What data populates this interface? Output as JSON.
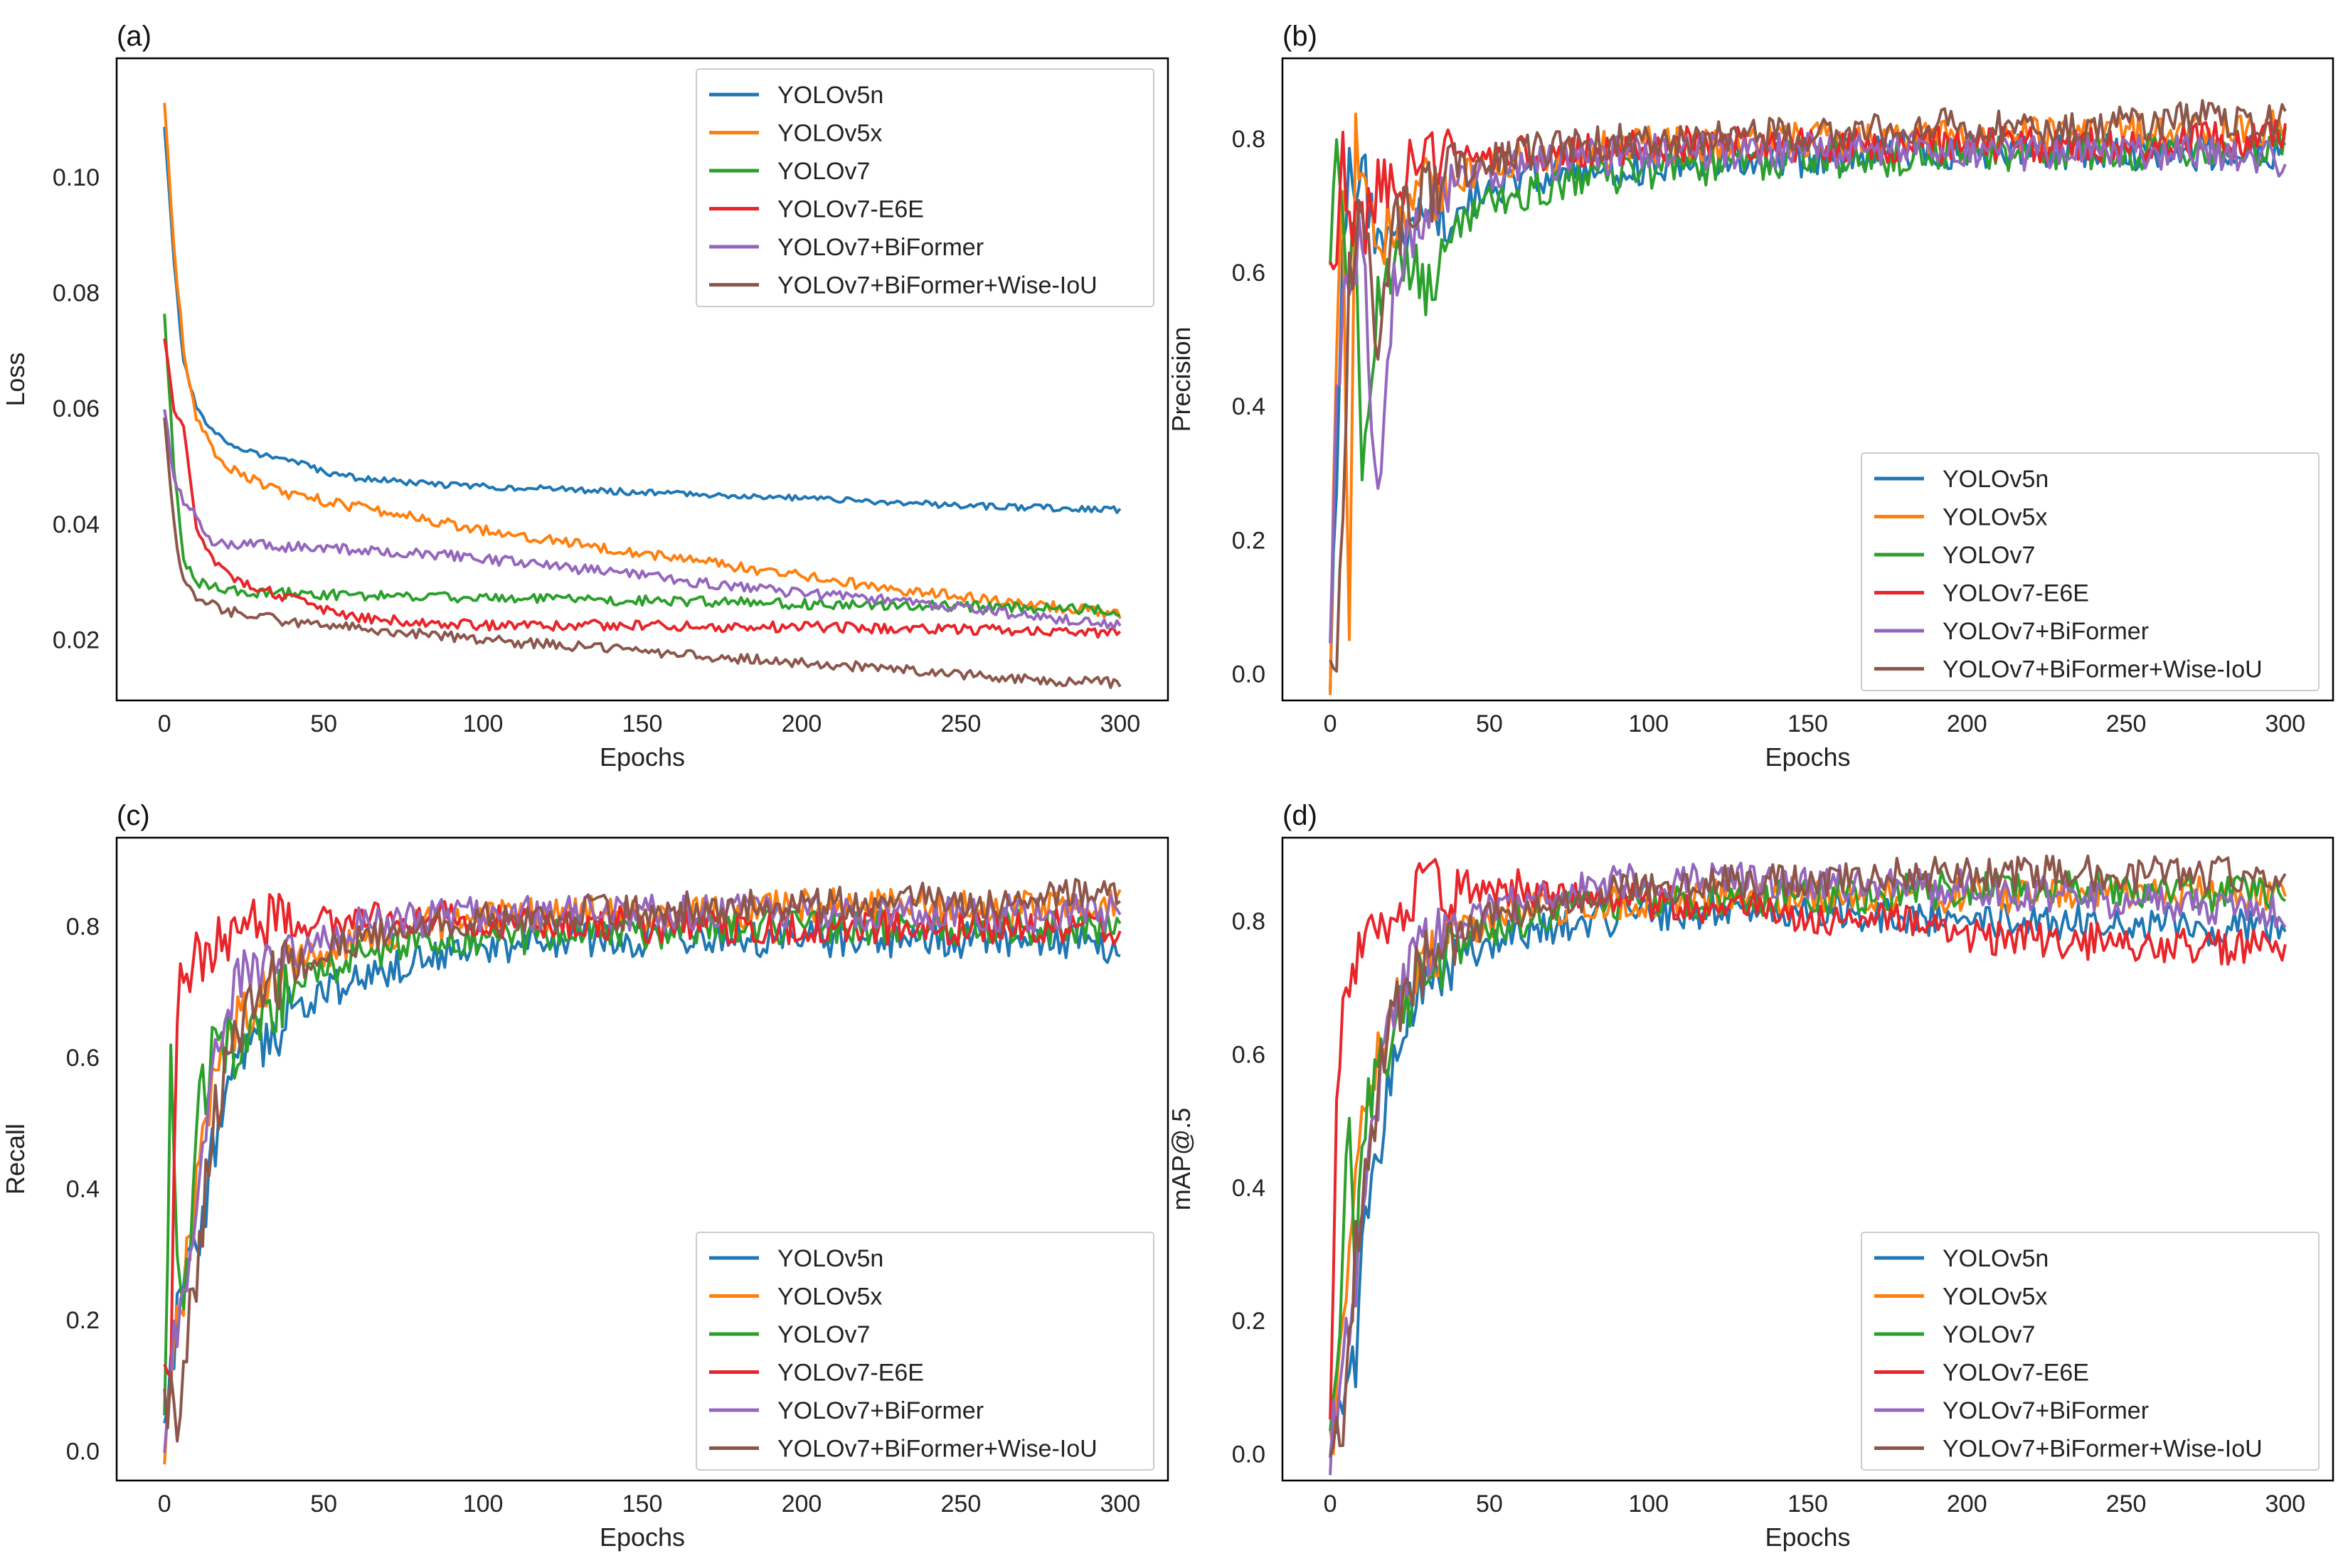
{
  "colors": {
    "YOLOv5n": "#1f77b4",
    "YOLOv5x": "#ff7f0e",
    "YOLOv7": "#2ca02c",
    "YOLOv7-E6E": "#e8252a",
    "YOLOv7+BiFormer": "#9467bd",
    "YOLOv7+BiFormer+Wise-IoU": "#8c564b"
  },
  "chart_data": [
    {
      "panel": "(a)",
      "type": "line",
      "xlabel": "Epochs",
      "ylabel": "Loss",
      "xlim": [
        -15,
        315
      ],
      "ylim": [
        0.0095,
        0.1205
      ],
      "xticks": [
        "0",
        "50",
        "100",
        "150",
        "200",
        "250",
        "300"
      ],
      "yticks": [
        "0.02",
        "0.04",
        "0.06",
        "0.08",
        "0.10"
      ],
      "legend_position": "top-right",
      "grid": false,
      "x": [
        0,
        3,
        6,
        10,
        15,
        20,
        30,
        40,
        50,
        60,
        80,
        100,
        125,
        150,
        175,
        200,
        225,
        250,
        275,
        300
      ],
      "series": [
        {
          "name": "YOLOv5n",
          "values": [
            0.109,
            0.085,
            0.068,
            0.06,
            0.056,
            0.054,
            0.052,
            0.051,
            0.049,
            0.048,
            0.047,
            0.0465,
            0.046,
            0.0455,
            0.045,
            0.0445,
            0.0438,
            0.0432,
            0.0428,
            0.0425
          ]
        },
        {
          "name": "YOLOv5x",
          "values": [
            0.113,
            0.088,
            0.07,
            0.058,
            0.053,
            0.05,
            0.047,
            0.045,
            0.044,
            0.043,
            0.041,
            0.039,
            0.037,
            0.035,
            0.033,
            0.031,
            0.029,
            0.0275,
            0.026,
            0.0245
          ]
        },
        {
          "name": "YOLOv7",
          "values": [
            0.076,
            0.05,
            0.034,
            0.03,
            0.029,
            0.0285,
            0.028,
            0.028,
            0.0278,
            0.0276,
            0.0275,
            0.0272,
            0.027,
            0.0268,
            0.0265,
            0.0262,
            0.026,
            0.0258,
            0.0255,
            0.025
          ]
        },
        {
          "name": "YOLOv7-E6E",
          "values": [
            0.072,
            0.06,
            0.056,
            0.04,
            0.034,
            0.031,
            0.029,
            0.027,
            0.025,
            0.024,
            0.023,
            0.0225,
            0.0225,
            0.0225,
            0.0222,
            0.0222,
            0.022,
            0.0218,
            0.0215,
            0.021
          ]
        },
        {
          "name": "YOLOv7+BiFormer",
          "values": [
            0.06,
            0.048,
            0.044,
            0.041,
            0.037,
            0.0365,
            0.0365,
            0.036,
            0.036,
            0.0355,
            0.035,
            0.034,
            0.0325,
            0.031,
            0.0295,
            0.028,
            0.027,
            0.0255,
            0.024,
            0.0225
          ]
        },
        {
          "name": "YOLOv7+BiFormer+Wise-IoU",
          "values": [
            0.058,
            0.04,
            0.03,
            0.027,
            0.026,
            0.025,
            0.024,
            0.023,
            0.0225,
            0.022,
            0.021,
            0.02,
            0.019,
            0.018,
            0.017,
            0.016,
            0.015,
            0.014,
            0.013,
            0.0125
          ]
        }
      ]
    },
    {
      "panel": "(b)",
      "type": "line",
      "xlabel": "Epochs",
      "ylabel": "Precision",
      "xlim": [
        -15,
        315
      ],
      "ylim": [
        -0.04,
        0.92
      ],
      "xticks": [
        "0",
        "50",
        "100",
        "150",
        "200",
        "250",
        "300"
      ],
      "yticks": [
        "0.0",
        "0.2",
        "0.4",
        "0.6",
        "0.8"
      ],
      "legend_position": "bottom-right",
      "grid": false,
      "x": [
        0,
        2,
        4,
        6,
        8,
        10,
        15,
        20,
        25,
        30,
        40,
        50,
        60,
        80,
        100,
        125,
        150,
        175,
        200,
        225,
        250,
        275,
        300
      ],
      "series": [
        {
          "name": "YOLOv5n",
          "values": [
            0.0,
            0.3,
            0.62,
            0.79,
            0.7,
            0.76,
            0.62,
            0.64,
            0.66,
            0.68,
            0.7,
            0.72,
            0.74,
            0.75,
            0.76,
            0.77,
            0.77,
            0.78,
            0.78,
            0.78,
            0.78,
            0.78,
            0.78
          ]
        },
        {
          "name": "YOLOv5x",
          "values": [
            0.0,
            0.5,
            0.7,
            0.04,
            0.8,
            0.72,
            0.65,
            0.68,
            0.7,
            0.72,
            0.74,
            0.76,
            0.77,
            0.78,
            0.79,
            0.79,
            0.8,
            0.8,
            0.8,
            0.81,
            0.81,
            0.81,
            0.82
          ]
        },
        {
          "name": "YOLOv7",
          "values": [
            0.66,
            0.75,
            0.64,
            0.6,
            0.7,
            0.26,
            0.55,
            0.6,
            0.62,
            0.55,
            0.66,
            0.7,
            0.72,
            0.74,
            0.75,
            0.76,
            0.77,
            0.77,
            0.78,
            0.78,
            0.78,
            0.78,
            0.79
          ]
        },
        {
          "name": "YOLOv7-E6E",
          "values": [
            0.57,
            0.62,
            0.8,
            0.68,
            0.7,
            0.66,
            0.72,
            0.74,
            0.75,
            0.76,
            0.77,
            0.77,
            0.78,
            0.78,
            0.79,
            0.79,
            0.79,
            0.79,
            0.79,
            0.79,
            0.79,
            0.8,
            0.8
          ]
        },
        {
          "name": "YOLOv7+BiFormer",
          "values": [
            0.0,
            0.4,
            0.55,
            0.6,
            0.62,
            0.65,
            0.25,
            0.6,
            0.66,
            0.7,
            0.73,
            0.75,
            0.76,
            0.77,
            0.78,
            0.78,
            0.78,
            0.78,
            0.78,
            0.78,
            0.78,
            0.78,
            0.77
          ]
        },
        {
          "name": "YOLOv7+BiFormer+Wise-IoU",
          "values": [
            0.0,
            0.01,
            0.2,
            0.6,
            0.65,
            0.7,
            0.5,
            0.66,
            0.7,
            0.72,
            0.75,
            0.77,
            0.78,
            0.79,
            0.8,
            0.8,
            0.81,
            0.81,
            0.82,
            0.82,
            0.82,
            0.83,
            0.83
          ]
        }
      ]
    },
    {
      "panel": "(c)",
      "type": "line",
      "xlabel": "Epochs",
      "ylabel": "Recall",
      "xlim": [
        -15,
        315
      ],
      "ylim": [
        -0.045,
        0.935
      ],
      "xticks": [
        "0",
        "50",
        "100",
        "150",
        "200",
        "250",
        "300"
      ],
      "yticks": [
        "0.0",
        "0.2",
        "0.4",
        "0.6",
        "0.8"
      ],
      "legend_position": "bottom-right",
      "grid": false,
      "x": [
        0,
        2,
        4,
        6,
        8,
        10,
        15,
        20,
        25,
        30,
        40,
        50,
        60,
        80,
        100,
        125,
        150,
        175,
        200,
        225,
        250,
        275,
        300
      ],
      "series": [
        {
          "name": "YOLOv5n",
          "values": [
            0.0,
            0.1,
            0.2,
            0.25,
            0.3,
            0.3,
            0.45,
            0.55,
            0.6,
            0.63,
            0.66,
            0.7,
            0.72,
            0.75,
            0.77,
            0.78,
            0.78,
            0.78,
            0.78,
            0.78,
            0.78,
            0.78,
            0.77
          ]
        },
        {
          "name": "YOLOv5x",
          "values": [
            0.02,
            0.1,
            0.2,
            0.25,
            0.3,
            0.4,
            0.55,
            0.62,
            0.66,
            0.7,
            0.74,
            0.76,
            0.78,
            0.8,
            0.81,
            0.82,
            0.82,
            0.82,
            0.83,
            0.83,
            0.83,
            0.83,
            0.84
          ]
        },
        {
          "name": "YOLOv7",
          "values": [
            0.02,
            0.64,
            0.3,
            0.2,
            0.3,
            0.5,
            0.6,
            0.62,
            0.6,
            0.66,
            0.7,
            0.73,
            0.75,
            0.77,
            0.78,
            0.79,
            0.79,
            0.8,
            0.8,
            0.8,
            0.8,
            0.8,
            0.8
          ]
        },
        {
          "name": "YOLOv7-E6E",
          "values": [
            0.11,
            0.15,
            0.7,
            0.72,
            0.74,
            0.76,
            0.76,
            0.78,
            0.79,
            0.8,
            0.81,
            0.81,
            0.81,
            0.81,
            0.81,
            0.81,
            0.8,
            0.8,
            0.8,
            0.8,
            0.8,
            0.8,
            0.8
          ]
        },
        {
          "name": "YOLOv7+BiFormer",
          "values": [
            0.02,
            0.1,
            0.2,
            0.22,
            0.3,
            0.4,
            0.6,
            0.68,
            0.72,
            0.74,
            0.76,
            0.78,
            0.8,
            0.81,
            0.82,
            0.82,
            0.82,
            0.82,
            0.82,
            0.82,
            0.82,
            0.82,
            0.82
          ]
        },
        {
          "name": "YOLOv7+BiFormer+Wise-IoU",
          "values": [
            0.05,
            0.1,
            0.02,
            0.15,
            0.2,
            0.25,
            0.5,
            0.6,
            0.66,
            0.7,
            0.74,
            0.76,
            0.78,
            0.8,
            0.81,
            0.82,
            0.82,
            0.83,
            0.83,
            0.84,
            0.84,
            0.84,
            0.85
          ]
        }
      ]
    },
    {
      "panel": "(d)",
      "type": "line",
      "xlabel": "Epochs",
      "ylabel": "mAP@.5",
      "xlim": [
        -15,
        315
      ],
      "ylim": [
        -0.04,
        0.925
      ],
      "xticks": [
        "0",
        "50",
        "100",
        "150",
        "200",
        "250",
        "300"
      ],
      "yticks": [
        "0.0",
        "0.2",
        "0.4",
        "0.6",
        "0.8"
      ],
      "legend_position": "bottom-right",
      "grid": false,
      "x": [
        0,
        2,
        4,
        6,
        8,
        10,
        15,
        20,
        25,
        30,
        40,
        50,
        60,
        80,
        100,
        125,
        150,
        175,
        200,
        225,
        250,
        275,
        300
      ],
      "series": [
        {
          "name": "YOLOv5n",
          "values": [
            0.0,
            0.05,
            0.08,
            0.1,
            0.15,
            0.3,
            0.45,
            0.6,
            0.66,
            0.7,
            0.74,
            0.77,
            0.78,
            0.8,
            0.81,
            0.82,
            0.82,
            0.81,
            0.8,
            0.8,
            0.8,
            0.79,
            0.79
          ]
        },
        {
          "name": "YOLOv5x",
          "values": [
            0.0,
            0.1,
            0.2,
            0.3,
            0.4,
            0.5,
            0.62,
            0.68,
            0.72,
            0.75,
            0.78,
            0.8,
            0.81,
            0.83,
            0.83,
            0.84,
            0.84,
            0.84,
            0.84,
            0.84,
            0.84,
            0.84,
            0.84
          ]
        },
        {
          "name": "YOLOv7",
          "values": [
            0.05,
            0.12,
            0.3,
            0.55,
            0.2,
            0.5,
            0.58,
            0.64,
            0.68,
            0.72,
            0.76,
            0.79,
            0.8,
            0.82,
            0.83,
            0.83,
            0.84,
            0.84,
            0.85,
            0.85,
            0.85,
            0.84,
            0.84
          ]
        },
        {
          "name": "YOLOv7-E6E",
          "values": [
            0.1,
            0.5,
            0.68,
            0.72,
            0.75,
            0.77,
            0.8,
            0.82,
            0.83,
            0.84,
            0.85,
            0.85,
            0.85,
            0.84,
            0.83,
            0.82,
            0.81,
            0.8,
            0.78,
            0.77,
            0.77,
            0.76,
            0.76
          ]
        },
        {
          "name": "YOLOv7+BiFormer",
          "values": [
            0.0,
            0.08,
            0.15,
            0.2,
            0.25,
            0.35,
            0.55,
            0.65,
            0.72,
            0.76,
            0.8,
            0.82,
            0.83,
            0.85,
            0.86,
            0.86,
            0.86,
            0.85,
            0.85,
            0.84,
            0.83,
            0.82,
            0.81
          ]
        },
        {
          "name": "YOLOv7+BiFormer+Wise-IoU",
          "values": [
            0.0,
            0.02,
            0.05,
            0.15,
            0.3,
            0.4,
            0.55,
            0.65,
            0.7,
            0.74,
            0.78,
            0.8,
            0.82,
            0.84,
            0.85,
            0.86,
            0.86,
            0.87,
            0.87,
            0.87,
            0.87,
            0.87,
            0.87
          ]
        }
      ]
    }
  ]
}
